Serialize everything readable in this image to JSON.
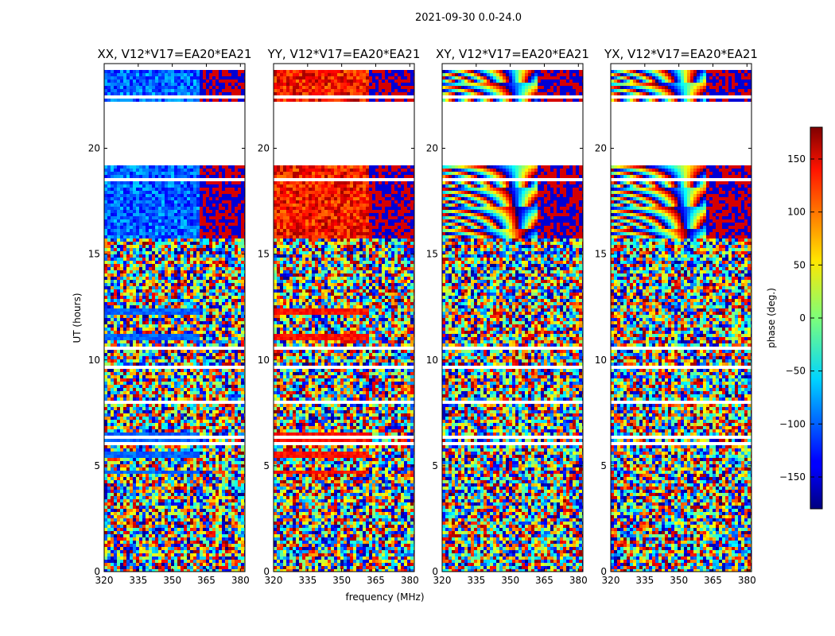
{
  "chart_data": {
    "type": "heatmap",
    "suptitle": "2021-09-30 0.0-24.0",
    "xlabel": "frequency (MHz)",
    "ylabel": "UT (hours)",
    "xlim": [
      320,
      382
    ],
    "ylim": [
      0,
      24
    ],
    "xticks": [
      "320",
      "335",
      "350",
      "365",
      "380"
    ],
    "xtick_values": [
      320,
      335,
      350,
      365,
      380
    ],
    "yticks": [
      "0",
      "5",
      "10",
      "15",
      "20"
    ],
    "ytick_values": [
      0,
      5,
      10,
      15,
      20
    ],
    "panels": [
      {
        "title": "XX, V12*V17=EA20*EA21",
        "smooth_phase": -100
      },
      {
        "title": "YY, V12*V17=EA20*EA21",
        "smooth_phase": 130
      },
      {
        "title": "XY, V12*V17=EA20*EA21",
        "smooth_phase": null
      },
      {
        "title": "YX, V12*V17=EA20*EA21",
        "smooth_phase": null
      }
    ],
    "colorbar": {
      "label": "phase (deg.)",
      "colormap": "jet",
      "range": [
        -180,
        180
      ],
      "ticks": [
        "150",
        "100",
        "50",
        "0",
        "−50",
        "−100",
        "−150"
      ],
      "tick_values": [
        150,
        100,
        50,
        0,
        -50,
        -100,
        -150
      ]
    },
    "no_data_intervals_hours": [
      [
        19.4,
        22.2
      ]
    ],
    "fringe_intervals_hours": [
      [
        15.8,
        19.4
      ],
      [
        22.2,
        24.0
      ]
    ],
    "coherent_bands_hours": [
      [
        12.2,
        12.5
      ],
      [
        11.0,
        11.2
      ],
      [
        6.0,
        6.6
      ],
      [
        5.3,
        5.6
      ],
      [
        4.6,
        4.8
      ]
    ]
  }
}
